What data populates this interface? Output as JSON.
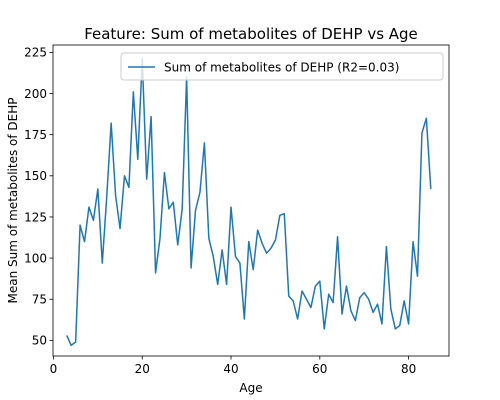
{
  "chart_data": {
    "type": "line",
    "title": "Feature: Sum of metabolites of DEHP vs Age",
    "xlabel": "Age",
    "ylabel": "Mean Sum of metabolites of DEHP",
    "xlim": [
      -0.1,
      89.1
    ],
    "ylim": [
      40.5,
      229.5
    ],
    "xticks": [
      0,
      20,
      40,
      60,
      80
    ],
    "yticks": [
      50,
      75,
      100,
      125,
      150,
      175,
      200,
      225
    ],
    "grid": false,
    "legend_position": "top-right",
    "series": [
      {
        "name": "Sum of metabolites of DEHP (R2=0.03)",
        "color": "#1f77b4",
        "x": [
          3,
          4,
          5,
          6,
          7,
          8,
          9,
          10,
          11,
          12,
          13,
          14,
          15,
          16,
          17,
          18,
          19,
          20,
          21,
          22,
          23,
          24,
          25,
          26,
          27,
          28,
          29,
          30,
          31,
          32,
          33,
          34,
          35,
          36,
          37,
          38,
          39,
          40,
          41,
          42,
          43,
          44,
          45,
          46,
          47,
          48,
          49,
          50,
          51,
          52,
          53,
          54,
          55,
          56,
          57,
          58,
          59,
          60,
          61,
          62,
          63,
          64,
          65,
          66,
          67,
          68,
          69,
          70,
          71,
          72,
          73,
          74,
          75,
          76,
          77,
          78,
          79,
          80,
          81,
          82,
          83,
          84,
          85
        ],
        "y": [
          53,
          47,
          49,
          120,
          110,
          131,
          123,
          142,
          97,
          137,
          182,
          138,
          118,
          150,
          143,
          201,
          160,
          221,
          148,
          186,
          91,
          112,
          152,
          130,
          134,
          108,
          130,
          210,
          94,
          129,
          140,
          170,
          112,
          101,
          84,
          105,
          84,
          131,
          101,
          97,
          63,
          110,
          93,
          117,
          109,
          103,
          106,
          111,
          126,
          127,
          77,
          74,
          63,
          80,
          75,
          70,
          83,
          86,
          57,
          78,
          73,
          113,
          66,
          83,
          68,
          62,
          76,
          79,
          75,
          67,
          72,
          60,
          107,
          69,
          57,
          59,
          74,
          60,
          110,
          89,
          176,
          185,
          142
        ]
      }
    ]
  }
}
